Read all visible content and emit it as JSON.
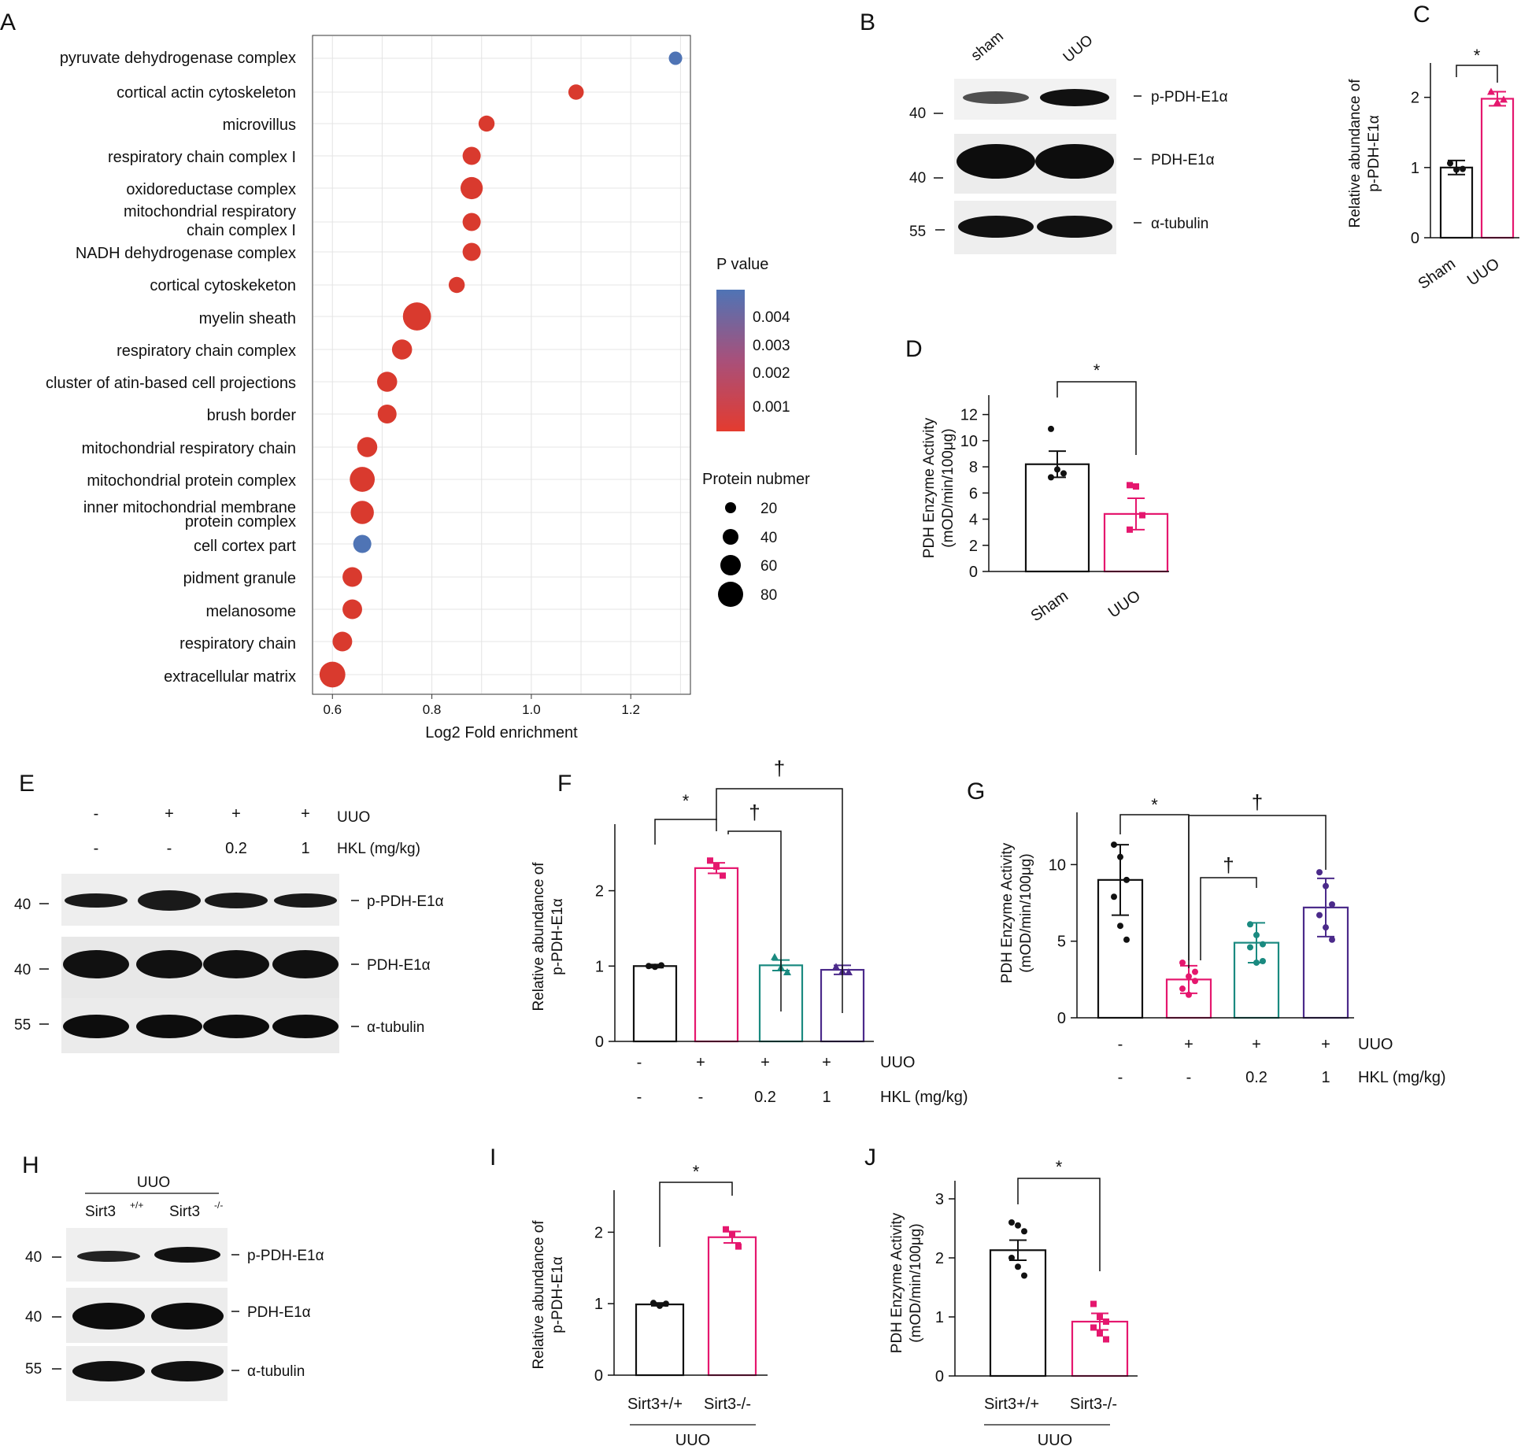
{
  "panels": {
    "A": "A",
    "B": "B",
    "C": "C",
    "D": "D",
    "E": "E",
    "F": "F",
    "G": "G",
    "H": "H",
    "I": "I",
    "J": "J"
  },
  "common": {
    "p_pdh": "p-PDH-E1α",
    "pdh": "PDH-E1α",
    "tub": "α-tubulin",
    "mw40": "40",
    "mw55": "55",
    "star": "*",
    "dagger": "†",
    "plus": "+",
    "minus": "-",
    "uuo": "UUO",
    "hkl": "HKL (mg/kg)",
    "d02": "0.2",
    "d1": "1",
    "rel_l1": "Relative abundance of",
    "rel_l2": "p-PDH-E1α",
    "act_l1": "PDH Enzyme Activity",
    "act_l2": "(mOD/min/100μg)"
  },
  "colors": {
    "black": "#111111",
    "pink": "#e5176e",
    "teal": "#1a8a80",
    "purple": "#4b2a8a",
    "dot_red": "#d93a2e",
    "dot_blue": "#4f74b5",
    "grid": "#e4e4e4"
  },
  "blotB": {
    "lanes": [
      "sham",
      "UUO"
    ]
  },
  "blotH": {
    "group": "UUO",
    "lanes": [
      "Sirt3",
      "Sirt3"
    ],
    "sup": [
      "+/+",
      "-/-"
    ]
  },
  "chart_data": [
    {
      "id": "A",
      "type": "scatter",
      "xlabel": "Log2 Fold enrichment",
      "xticks": [
        "0.6",
        "0.8",
        "1.0",
        "1.2"
      ],
      "xlim": [
        0.56,
        1.32
      ],
      "legend_title": "P value",
      "legend_ticks": [
        "0.004",
        "0.003",
        "0.002",
        "0.001"
      ],
      "size_title": "Protein nubmer",
      "size_ticks": [
        "20",
        "40",
        "60",
        "80"
      ],
      "terms": [
        "pyruvate dehydrogenase complex",
        "cortical actin cytoskeleton",
        "microvillus",
        "respiratory chain complex I",
        "oxidoreductase complex",
        "mitochondrial respiratory",
        "chain complex I",
        "NADH dehydrogenase complex",
        "cortical cytoskeketon",
        "myelin sheath",
        "respiratory chain complex",
        "cluster of atin-based cell projections",
        "brush border",
        "mitochondrial respiratory chain",
        "mitochondrial protein complex",
        "inner mitochondrial membrane",
        "protein complex",
        "cell cortex part",
        "pidment granule",
        "melanosome",
        "respiratory chain",
        "extracellular matrix"
      ],
      "rows": [
        {
          "x": 1.29,
          "count": 8,
          "p": 0.0045
        },
        {
          "x": 1.09,
          "count": 13,
          "p": 0.0002
        },
        {
          "x": 0.91,
          "count": 15,
          "p": 0.0002
        },
        {
          "x": 0.88,
          "count": 22,
          "p": 0.0001
        },
        {
          "x": 0.88,
          "count": 40,
          "p": 0.0001
        },
        {
          "x": 0.88,
          "count": 22,
          "p": 0.0001
        },
        {
          "x": 0.88,
          "count": 22,
          "p": 0.0001
        },
        {
          "x": 0.85,
          "count": 15,
          "p": 0.0003
        },
        {
          "x": 0.77,
          "count": 75,
          "p": 5e-05
        },
        {
          "x": 0.74,
          "count": 30,
          "p": 0.0002
        },
        {
          "x": 0.71,
          "count": 30,
          "p": 0.0002
        },
        {
          "x": 0.71,
          "count": 25,
          "p": 0.0002
        },
        {
          "x": 0.67,
          "count": 30,
          "p": 0.0002
        },
        {
          "x": 0.66,
          "count": 55,
          "p": 5e-05
        },
        {
          "x": 0.66,
          "count": 45,
          "p": 0.0001
        },
        {
          "x": 0.66,
          "count": 22,
          "p": 0.004
        },
        {
          "x": 0.64,
          "count": 28,
          "p": 0.0003
        },
        {
          "x": 0.64,
          "count": 28,
          "p": 0.0003
        },
        {
          "x": 0.62,
          "count": 28,
          "p": 0.0003
        },
        {
          "x": 0.6,
          "count": 60,
          "p": 5e-05
        }
      ]
    },
    {
      "id": "C",
      "type": "bar",
      "categories": [
        "Sham",
        "UUO"
      ],
      "values": [
        1.0,
        1.98
      ],
      "errors": [
        0.1,
        0.1
      ],
      "points": [
        [
          1.06,
          0.97,
          0.98
        ],
        [
          2.08,
          1.93,
          1.97
        ]
      ],
      "ylim": [
        0,
        2.4
      ],
      "yticks": [
        "0",
        "1",
        "2"
      ]
    },
    {
      "id": "D",
      "type": "bar",
      "categories": [
        "Sham",
        "UUO"
      ],
      "values": [
        8.2,
        4.4
      ],
      "errors": [
        1.0,
        1.2
      ],
      "points": [
        [
          10.9,
          7.8,
          7.5,
          7.2
        ],
        [
          6.6,
          6.5,
          4.3,
          3.2
        ]
      ],
      "ylim": [
        0,
        13
      ],
      "yticks": [
        "0",
        "2",
        "4",
        "6",
        "8",
        "10",
        "12"
      ]
    },
    {
      "id": "F",
      "type": "bar",
      "categories": [
        "-/-",
        "+/-",
        "+/0.2",
        "+/1"
      ],
      "values": [
        1.0,
        2.3,
        1.01,
        0.95
      ],
      "errors": [
        0.02,
        0.07,
        0.07,
        0.06
      ],
      "points": [
        [
          1.0,
          0.99,
          1.01
        ],
        [
          2.4,
          2.32,
          2.2
        ],
        [
          1.12,
          0.98,
          0.92
        ],
        [
          0.99,
          0.93,
          0.92
        ]
      ],
      "ylim": [
        0,
        2.8
      ],
      "yticks": [
        "0",
        "1",
        "2"
      ]
    },
    {
      "id": "G",
      "type": "bar",
      "categories": [
        "-/-",
        "+/-",
        "+/0.2",
        "+/1"
      ],
      "values": [
        9.0,
        2.5,
        4.9,
        7.2
      ],
      "errors": [
        2.3,
        0.9,
        1.3,
        1.9
      ],
      "points": [
        [
          11.3,
          10.5,
          9.0,
          7.9,
          6.0,
          5.1
        ],
        [
          3.6,
          2.7,
          2.4,
          1.9,
          1.5,
          3.0
        ],
        [
          6.1,
          5.4,
          4.8,
          4.6,
          3.6,
          3.7
        ],
        [
          9.5,
          8.6,
          7.4,
          6.7,
          5.9,
          5.1
        ]
      ],
      "ylim": [
        0,
        13
      ],
      "yticks": [
        "0",
        "5",
        "10"
      ]
    },
    {
      "id": "I",
      "type": "bar",
      "categories": [
        "Sirt3+/+",
        "Sirt3-/-"
      ],
      "values": [
        0.99,
        1.93
      ],
      "errors": [
        0.02,
        0.08
      ],
      "points": [
        [
          1.01,
          0.97,
          1.0
        ],
        [
          2.04,
          1.97,
          1.8
        ]
      ],
      "ylim": [
        0,
        2.5
      ],
      "yticks": [
        "0",
        "1",
        "2"
      ]
    },
    {
      "id": "J",
      "type": "bar",
      "categories": [
        "Sirt3+/+",
        "Sirt3-/-"
      ],
      "values": [
        2.13,
        0.92
      ],
      "errors": [
        0.17,
        0.14
      ],
      "points": [
        [
          2.6,
          2.55,
          2.45,
          2.0,
          1.85,
          1.7
        ],
        [
          1.22,
          1.0,
          0.92,
          0.82,
          0.72,
          0.62
        ]
      ],
      "ylim": [
        0,
        3.2
      ],
      "yticks": [
        "0",
        "1",
        "2",
        "3"
      ]
    }
  ]
}
